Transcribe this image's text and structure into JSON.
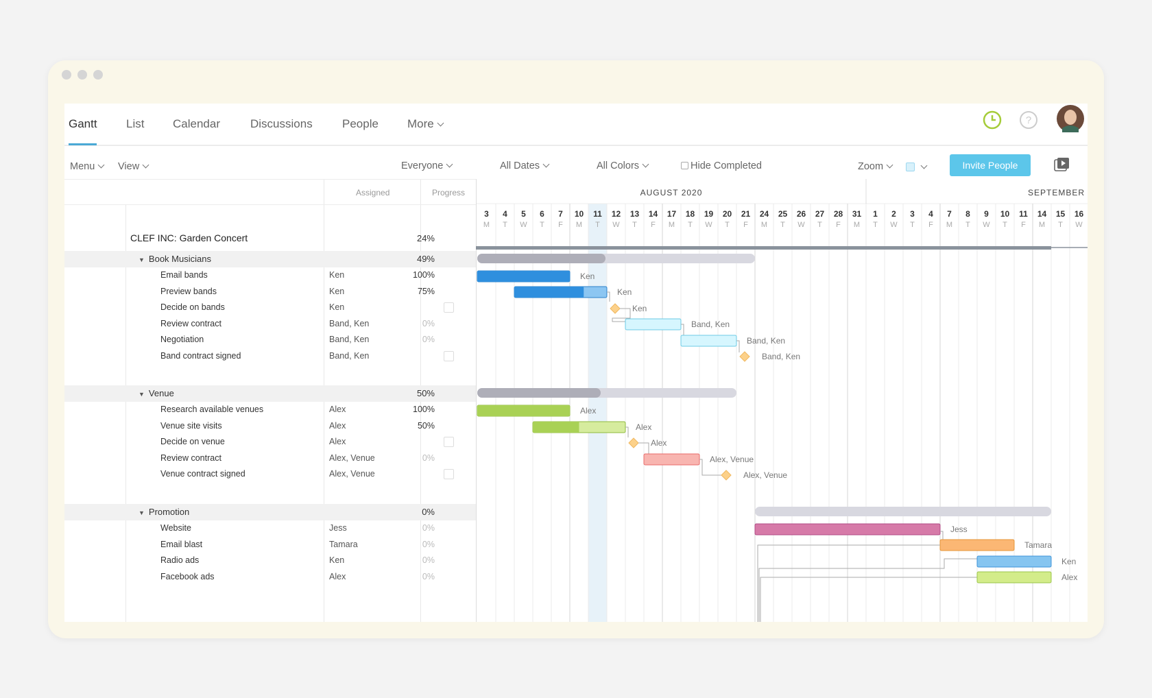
{
  "tabs": [
    {
      "label": "Gantt",
      "active": true
    },
    {
      "label": "List"
    },
    {
      "label": "Calendar"
    },
    {
      "label": "Discussions"
    },
    {
      "label": "People"
    },
    {
      "label": "More"
    }
  ],
  "toolbar": {
    "menu": "Menu",
    "view": "View",
    "everyone": "Everyone",
    "all_dates": "All Dates",
    "all_colors": "All Colors",
    "hide_completed": "Hide Completed",
    "zoom": "Zoom",
    "invite": "Invite People"
  },
  "columns": {
    "assigned": "Assigned",
    "progress": "Progress"
  },
  "project": {
    "name": "CLEF INC: Garden Concert",
    "progress": "24%"
  },
  "timeline": {
    "month1": "AUGUST 2020",
    "month2": "SEPTEMBER",
    "days": [
      [
        "3",
        "M"
      ],
      [
        "4",
        "T"
      ],
      [
        "5",
        "W"
      ],
      [
        "6",
        "T"
      ],
      [
        "7",
        "F"
      ],
      [
        "10",
        "M"
      ],
      [
        "11",
        "T"
      ],
      [
        "12",
        "W"
      ],
      [
        "13",
        "T"
      ],
      [
        "14",
        "F"
      ],
      [
        "17",
        "M"
      ],
      [
        "18",
        "T"
      ],
      [
        "19",
        "W"
      ],
      [
        "20",
        "T"
      ],
      [
        "21",
        "F"
      ],
      [
        "24",
        "M"
      ],
      [
        "25",
        "T"
      ],
      [
        "26",
        "W"
      ],
      [
        "27",
        "T"
      ],
      [
        "28",
        "F"
      ],
      [
        "31",
        "M"
      ],
      [
        "1",
        "T"
      ],
      [
        "2",
        "W"
      ],
      [
        "3",
        "T"
      ],
      [
        "4",
        "F"
      ],
      [
        "7",
        "M"
      ],
      [
        "8",
        "T"
      ],
      [
        "9",
        "W"
      ],
      [
        "10",
        "T"
      ],
      [
        "11",
        "F"
      ],
      [
        "14",
        "M"
      ],
      [
        "15",
        "T"
      ],
      [
        "16",
        "W"
      ]
    ]
  },
  "groups": [
    {
      "name": "Book Musicians",
      "progress": "49%",
      "tasks": [
        {
          "name": "Email bands",
          "assigned": "Ken",
          "progress": "100%",
          "progress_value": 1.0
        },
        {
          "name": "Preview bands",
          "assigned": "Ken",
          "progress": "75%",
          "progress_value": 0.75
        },
        {
          "name": "Decide on bands",
          "assigned": "Ken",
          "progress": "",
          "milestone": true
        },
        {
          "name": "Review contract",
          "assigned": "Band, Ken",
          "progress": "0%",
          "progress_value": 0
        },
        {
          "name": "Negotiation",
          "assigned": "Band, Ken",
          "progress": "0%",
          "progress_value": 0
        },
        {
          "name": "Band contract signed",
          "assigned": "Band, Ken",
          "progress": "",
          "milestone": true
        }
      ]
    },
    {
      "name": "Venue",
      "progress": "50%",
      "tasks": [
        {
          "name": "Research available venues",
          "assigned": "Alex",
          "progress": "100%",
          "progress_value": 1.0
        },
        {
          "name": "Venue site visits",
          "assigned": "Alex",
          "progress": "50%",
          "progress_value": 0.5
        },
        {
          "name": "Decide on venue",
          "assigned": "Alex",
          "progress": "",
          "milestone": true
        },
        {
          "name": "Review contract",
          "assigned": "Alex, Venue",
          "progress": "0%",
          "progress_value": 0
        },
        {
          "name": "Venue contract signed",
          "assigned": "Alex, Venue",
          "progress": "",
          "milestone": true
        }
      ]
    },
    {
      "name": "Promotion",
      "progress": "0%",
      "tasks": [
        {
          "name": "Website",
          "assigned": "Jess",
          "progress": "0%",
          "progress_value": 0
        },
        {
          "name": "Email blast",
          "assigned": "Tamara",
          "progress": "0%",
          "progress_value": 0
        },
        {
          "name": "Radio ads",
          "assigned": "Ken",
          "progress": "0%",
          "progress_value": 0
        },
        {
          "name": "Facebook ads",
          "assigned": "Alex",
          "progress": "0%",
          "progress_value": 0
        }
      ]
    }
  ],
  "colors": {
    "accent": "#5cc6ea",
    "blue": "#2f8fde",
    "green": "#a9d155",
    "red": "#f8b5b0",
    "pink": "#d67aa8",
    "orange": "#fbb774",
    "today": "#e7f2f9"
  }
}
